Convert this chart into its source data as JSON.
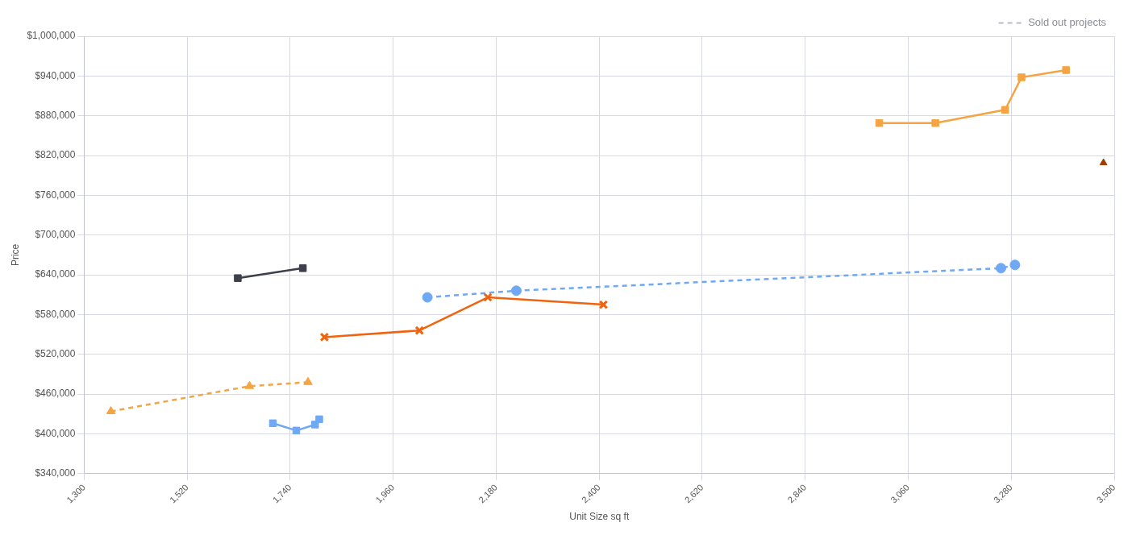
{
  "chart_data": {
    "type": "line",
    "xlabel": "Unit Size sq ft",
    "ylabel": "Price",
    "xlim": [
      1300,
      3500
    ],
    "ylim": [
      340000,
      1000000
    ],
    "xticks": [
      {
        "value": 1300,
        "label": "1,300"
      },
      {
        "value": 1520,
        "label": "1,520"
      },
      {
        "value": 1740,
        "label": "1,740"
      },
      {
        "value": 1960,
        "label": "1,960"
      },
      {
        "value": 2180,
        "label": "2,180"
      },
      {
        "value": 2400,
        "label": "2,400"
      },
      {
        "value": 2620,
        "label": "2,620"
      },
      {
        "value": 2840,
        "label": "2,840"
      },
      {
        "value": 3060,
        "label": "3,060"
      },
      {
        "value": 3280,
        "label": "3,280"
      },
      {
        "value": 3500,
        "label": "3,500"
      }
    ],
    "yticks": [
      {
        "value": 340000,
        "label": "$340,000"
      },
      {
        "value": 400000,
        "label": "$400,000"
      },
      {
        "value": 460000,
        "label": "$460,000"
      },
      {
        "value": 520000,
        "label": "$520,000"
      },
      {
        "value": 580000,
        "label": "$580,000"
      },
      {
        "value": 640000,
        "label": "$640,000"
      },
      {
        "value": 700000,
        "label": "$700,000"
      },
      {
        "value": 760000,
        "label": "$760,000"
      },
      {
        "value": 820000,
        "label": "$820,000"
      },
      {
        "value": 880000,
        "label": "$880,000"
      },
      {
        "value": 940000,
        "label": "$940,000"
      },
      {
        "value": 1000000,
        "label": "$1,000,000"
      }
    ],
    "grid": true,
    "legend": "top right",
    "series": [
      {
        "color": "#3d3f4a",
        "marker": "square",
        "line_style": "solid",
        "x": [
          1628,
          1767
        ],
        "values": [
          635000,
          650000
        ]
      },
      {
        "color": "#6fa8f5",
        "marker": "square",
        "line_style": "solid",
        "x": [
          1703,
          1753,
          1793,
          1802
        ],
        "values": [
          416000,
          405000,
          414000,
          422000
        ]
      },
      {
        "color": "#f5a443",
        "marker": "triangle",
        "line_style": "dashed",
        "x": [
          1357,
          1653,
          1778
        ],
        "values": [
          434000,
          472000,
          478000
        ]
      },
      {
        "color": "#f0630f",
        "marker": "cross",
        "line_style": "solid",
        "x": [
          1813,
          2016,
          2162,
          2409
        ],
        "values": [
          546000,
          556000,
          606000,
          595000
        ]
      },
      {
        "color": "#6fa8f5",
        "marker": "circle",
        "line_style": "dashed",
        "x": [
          2033,
          2223,
          3258,
          3288
        ],
        "values": [
          606000,
          616000,
          650000,
          655000
        ]
      },
      {
        "color": "#f5a443",
        "marker": "square",
        "line_style": "solid",
        "x": [
          2998,
          3118,
          3267,
          3302,
          3397
        ],
        "values": [
          869000,
          869000,
          889000,
          938000,
          949000
        ]
      },
      {
        "type": "scatter",
        "color": "#a33a00",
        "marker": "triangle",
        "x": [
          3477
        ],
        "values": [
          809000
        ]
      },
      {
        "name": "Sold out projects",
        "color": "#b8bcc8",
        "line_style": "dashed"
      }
    ]
  }
}
